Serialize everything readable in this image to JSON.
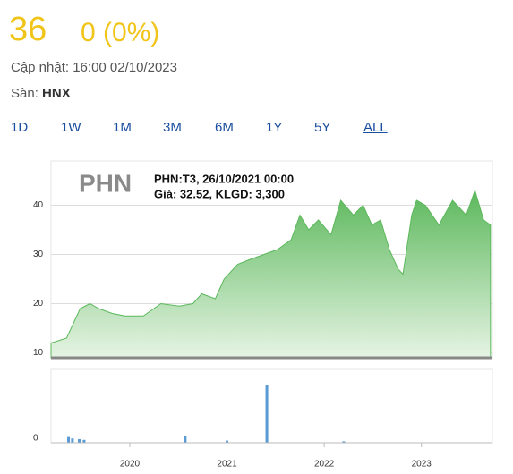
{
  "header": {
    "price": "36",
    "change": "0 (0%)",
    "updated": "Cập nhật: 16:00 02/10/2023",
    "exchange_label": "Sàn:",
    "exchange": "HNX"
  },
  "tabs": [
    "1D",
    "1W",
    "1M",
    "3M",
    "6M",
    "1Y",
    "5Y",
    "ALL"
  ],
  "chart_data": [
    {
      "type": "area",
      "watermark": "PHN",
      "annotations": [
        "PHN:T3, 26/10/2021 00:00",
        "Giá: 32.52, KLGD: 3,300"
      ],
      "x": [
        2019.19,
        2019.35,
        2019.49,
        2019.59,
        2019.68,
        2019.82,
        2019.95,
        2020.14,
        2020.32,
        2020.51,
        2020.65,
        2020.74,
        2020.88,
        2020.97,
        2021.11,
        2021.24,
        2021.38,
        2021.52,
        2021.66,
        2021.75,
        2021.84,
        2021.94,
        2022.07,
        2022.17,
        2022.3,
        2022.4,
        2022.49,
        2022.58,
        2022.67,
        2022.76,
        2022.81,
        2022.9,
        2022.95,
        2023.04,
        2023.18,
        2023.32,
        2023.46,
        2023.55,
        2023.64,
        2023.71
      ],
      "series": [
        {
          "color": "#5cb85c",
          "values": [
            12,
            13,
            19,
            20,
            19,
            18,
            17.5,
            17.5,
            20,
            19.5,
            20,
            22,
            21,
            25,
            28,
            29,
            30,
            31,
            33,
            38,
            35,
            37,
            34,
            41,
            38,
            40,
            36,
            37,
            31,
            27,
            26,
            38,
            41,
            40,
            36,
            41,
            38,
            43,
            37,
            36
          ]
        }
      ],
      "xlim": [
        2019.19,
        2023.73
      ],
      "xticks": [
        2020,
        2021,
        2022,
        2023
      ],
      "ylim": [
        9,
        49
      ],
      "yticks": [
        10,
        20,
        30,
        40
      ],
      "grid": true
    },
    {
      "type": "bar",
      "x": [
        2019.37,
        2019.41,
        2019.48,
        2019.53,
        2020.57,
        2021.0,
        2021.41,
        2022.2
      ],
      "series": [
        {
          "color": "#5b9bd5",
          "values": [
            8,
            6,
            5,
            4,
            10,
            3,
            81,
            2
          ]
        }
      ],
      "xlim": [
        2019.19,
        2023.73
      ],
      "ylim": [
        0,
        100
      ],
      "yticks": [
        0
      ]
    }
  ]
}
